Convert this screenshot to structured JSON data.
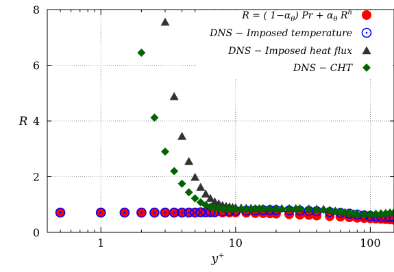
{
  "chart_data": {
    "type": "scatter",
    "x_scale": "log",
    "xlim": [
      0.4,
      150
    ],
    "ylim": [
      0,
      8
    ],
    "grid": true,
    "legend_position": "top-right",
    "xlabel_base": "y",
    "xlabel_sup": "+",
    "ylabel": "R",
    "x_ticks": [
      {
        "value": 1,
        "label": "1"
      },
      {
        "value": 10,
        "label": "10"
      },
      {
        "value": 100,
        "label": "100"
      }
    ],
    "y_ticks": [
      {
        "value": 0,
        "label": "0"
      },
      {
        "value": 2,
        "label": "2"
      },
      {
        "value": 4,
        "label": "4"
      },
      {
        "value": 6,
        "label": "6"
      },
      {
        "value": 8,
        "label": "8"
      }
    ],
    "legend": [
      {
        "label": "R = ( 1−αθ ) Pr + αθ Rh",
        "marker": "circle-filled",
        "color": "#ff0000"
      },
      {
        "label": "DNS − Imposed temperature",
        "marker": "circle-open-dot",
        "color": "#0000ff"
      },
      {
        "label": "DNS − Imposed heat flux",
        "marker": "triangle",
        "color": "#333333"
      },
      {
        "label": "DNS − CHT",
        "marker": "diamond",
        "color": "#006400"
      }
    ],
    "series": [
      {
        "name": "R = ( 1−αθ ) Pr + αθ Rh",
        "marker": "circle-filled",
        "color": "#ff0000",
        "points": [
          [
            0.5,
            0.71
          ],
          [
            1.0,
            0.71
          ],
          [
            1.5,
            0.71
          ],
          [
            2.0,
            0.71
          ],
          [
            2.5,
            0.71
          ],
          [
            3.0,
            0.71
          ],
          [
            3.5,
            0.71
          ],
          [
            4.0,
            0.71
          ],
          [
            4.5,
            0.71
          ],
          [
            5.0,
            0.71
          ],
          [
            5.5,
            0.71
          ],
          [
            6,
            0.71
          ],
          [
            6.5,
            0.71
          ],
          [
            7,
            0.71
          ],
          [
            8,
            0.71
          ],
          [
            9,
            0.71
          ],
          [
            10,
            0.71
          ],
          [
            12,
            0.7
          ],
          [
            14,
            0.69
          ],
          [
            16,
            0.69
          ],
          [
            18,
            0.68
          ],
          [
            20,
            0.67
          ],
          [
            25,
            0.65
          ],
          [
            30,
            0.63
          ],
          [
            35,
            0.62
          ],
          [
            40,
            0.6
          ],
          [
            50,
            0.58
          ],
          [
            60,
            0.56
          ],
          [
            70,
            0.54
          ],
          [
            80,
            0.52
          ],
          [
            90,
            0.51
          ],
          [
            100,
            0.5
          ],
          [
            110,
            0.49
          ],
          [
            120,
            0.48
          ],
          [
            130,
            0.47
          ],
          [
            140,
            0.46
          ],
          [
            150,
            0.45
          ]
        ]
      },
      {
        "name": "DNS − Imposed temperature",
        "marker": "circle-open-dot",
        "color": "#0000ff",
        "points": [
          [
            0.5,
            0.71
          ],
          [
            1.0,
            0.71
          ],
          [
            1.5,
            0.71
          ],
          [
            2.0,
            0.71
          ],
          [
            2.5,
            0.71
          ],
          [
            3.0,
            0.71
          ],
          [
            3.5,
            0.71
          ],
          [
            4.0,
            0.71
          ],
          [
            4.5,
            0.71
          ],
          [
            5.0,
            0.71
          ],
          [
            5.5,
            0.72
          ],
          [
            6,
            0.72
          ],
          [
            6.5,
            0.73
          ],
          [
            7,
            0.73
          ],
          [
            8,
            0.75
          ],
          [
            9,
            0.76
          ],
          [
            10,
            0.77
          ],
          [
            12,
            0.78
          ],
          [
            14,
            0.79
          ],
          [
            16,
            0.8
          ],
          [
            18,
            0.8
          ],
          [
            20,
            0.8
          ],
          [
            25,
            0.79
          ],
          [
            30,
            0.78
          ],
          [
            35,
            0.77
          ],
          [
            40,
            0.76
          ],
          [
            50,
            0.73
          ],
          [
            60,
            0.7
          ],
          [
            70,
            0.67
          ],
          [
            80,
            0.64
          ],
          [
            90,
            0.61
          ],
          [
            100,
            0.59
          ],
          [
            110,
            0.57
          ],
          [
            120,
            0.56
          ],
          [
            130,
            0.55
          ],
          [
            140,
            0.55
          ],
          [
            150,
            0.55
          ]
        ]
      },
      {
        "name": "DNS − Imposed heat flux",
        "marker": "triangle",
        "color": "#333333",
        "points": [
          [
            3.0,
            7.55
          ],
          [
            3.5,
            4.88
          ],
          [
            4.0,
            3.45
          ],
          [
            4.5,
            2.55
          ],
          [
            5.0,
            1.98
          ],
          [
            5.5,
            1.62
          ],
          [
            6,
            1.38
          ],
          [
            6.5,
            1.22
          ],
          [
            7,
            1.1
          ],
          [
            7.5,
            1.03
          ],
          [
            8,
            0.97
          ],
          [
            8.5,
            0.94
          ],
          [
            9,
            0.92
          ],
          [
            9.5,
            0.9
          ],
          [
            10,
            0.89
          ],
          [
            11,
            0.88
          ],
          [
            12,
            0.87
          ],
          [
            13,
            0.87
          ],
          [
            14,
            0.86
          ],
          [
            15,
            0.86
          ],
          [
            16,
            0.86
          ],
          [
            18,
            0.86
          ],
          [
            20,
            0.86
          ],
          [
            22,
            0.86
          ],
          [
            25,
            0.86
          ],
          [
            28,
            0.86
          ],
          [
            30,
            0.86
          ],
          [
            35,
            0.85
          ],
          [
            40,
            0.84
          ],
          [
            45,
            0.83
          ],
          [
            50,
            0.8
          ],
          [
            55,
            0.77
          ],
          [
            60,
            0.74
          ],
          [
            65,
            0.72
          ],
          [
            70,
            0.7
          ],
          [
            75,
            0.68
          ],
          [
            80,
            0.67
          ],
          [
            90,
            0.66
          ],
          [
            100,
            0.66
          ],
          [
            110,
            0.67
          ],
          [
            120,
            0.68
          ],
          [
            130,
            0.69
          ],
          [
            140,
            0.71
          ],
          [
            150,
            0.72
          ]
        ]
      },
      {
        "name": "DNS − CHT",
        "marker": "diamond",
        "color": "#006400",
        "points": [
          [
            2.0,
            6.45
          ],
          [
            2.5,
            4.12
          ],
          [
            3.0,
            2.9
          ],
          [
            3.5,
            2.2
          ],
          [
            4.0,
            1.75
          ],
          [
            4.5,
            1.44
          ],
          [
            5.0,
            1.22
          ],
          [
            5.5,
            1.08
          ],
          [
            6,
            0.98
          ],
          [
            6.5,
            0.92
          ],
          [
            7,
            0.88
          ],
          [
            7.5,
            0.86
          ],
          [
            8,
            0.85
          ],
          [
            8.5,
            0.84
          ],
          [
            9,
            0.84
          ],
          [
            9.5,
            0.83
          ],
          [
            10,
            0.83
          ],
          [
            11,
            0.83
          ],
          [
            12,
            0.83
          ],
          [
            13,
            0.83
          ],
          [
            14,
            0.84
          ],
          [
            15,
            0.84
          ],
          [
            16,
            0.84
          ],
          [
            18,
            0.84
          ],
          [
            20,
            0.84
          ],
          [
            22,
            0.84
          ],
          [
            25,
            0.84
          ],
          [
            28,
            0.84
          ],
          [
            30,
            0.84
          ],
          [
            35,
            0.83
          ],
          [
            40,
            0.82
          ],
          [
            45,
            0.81
          ],
          [
            50,
            0.79
          ],
          [
            55,
            0.76
          ],
          [
            60,
            0.73
          ],
          [
            65,
            0.71
          ],
          [
            70,
            0.69
          ],
          [
            75,
            0.67
          ],
          [
            80,
            0.66
          ],
          [
            90,
            0.65
          ],
          [
            100,
            0.65
          ],
          [
            110,
            0.66
          ],
          [
            120,
            0.67
          ],
          [
            130,
            0.68
          ],
          [
            140,
            0.7
          ],
          [
            150,
            0.71
          ]
        ]
      }
    ]
  }
}
